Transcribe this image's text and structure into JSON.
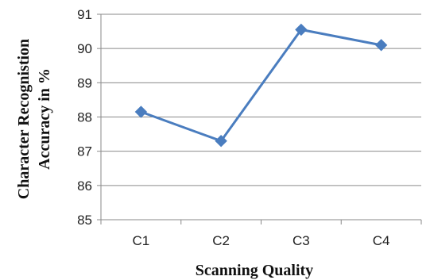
{
  "chart_data": {
    "type": "line",
    "title": "",
    "xlabel": "Scanning Quality",
    "ylabel_lines": [
      "Character Recognistion",
      "Accuracy in %"
    ],
    "categories": [
      "C1",
      "C2",
      "C3",
      "C4"
    ],
    "series": [
      {
        "values": [
          88.15,
          87.3,
          90.55,
          90.1
        ],
        "color": "#4a7dbf",
        "marker": "diamond"
      }
    ],
    "ylim": [
      85,
      91
    ],
    "yticks": [
      "85",
      "86",
      "87",
      "88",
      "89",
      "90",
      "91"
    ],
    "grid": true,
    "legend": "none"
  }
}
